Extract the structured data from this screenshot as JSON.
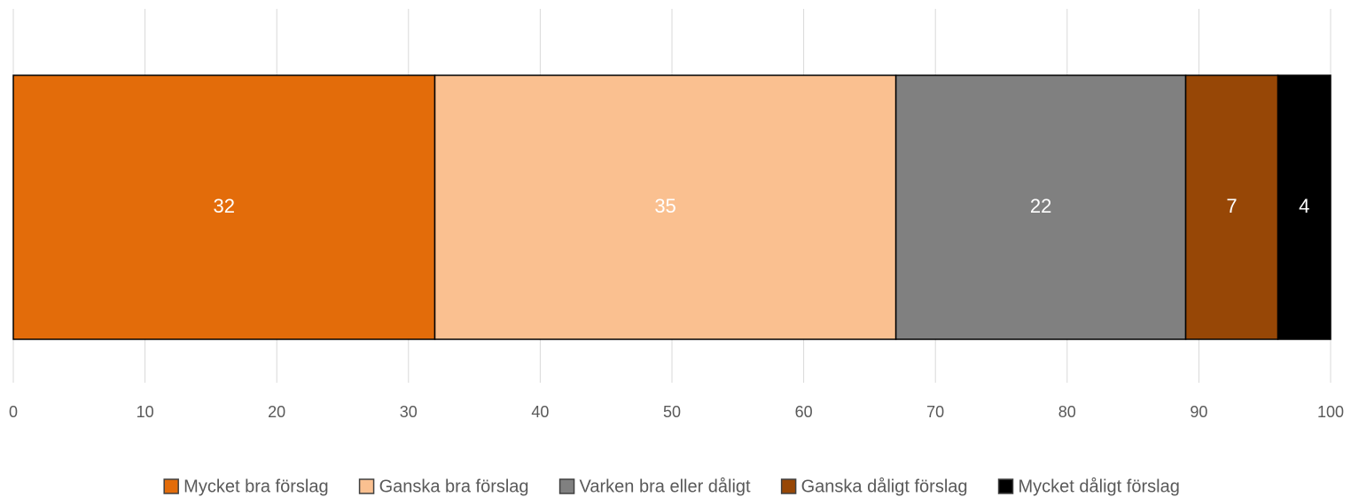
{
  "chart_data": {
    "type": "stacked_bar_horizontal",
    "categories": [
      null
    ],
    "series": [
      {
        "name": "Mycket bra förslag",
        "color": "#e36c0a",
        "values": [
          32
        ]
      },
      {
        "name": "Ganska bra förslag",
        "color": "#fac090",
        "values": [
          35
        ]
      },
      {
        "name": "Varken bra eller dåligt",
        "color": "#808080",
        "values": [
          22
        ]
      },
      {
        "name": "Ganska dåligt förslag",
        "color": "#974706",
        "values": [
          7
        ]
      },
      {
        "name": "Mycket dåligt förslag",
        "color": "#000000",
        "values": [
          4
        ]
      }
    ],
    "xlim": [
      0,
      100
    ],
    "xticks": [
      0,
      10,
      20,
      30,
      40,
      50,
      60,
      70,
      80,
      90,
      100
    ],
    "grid": true,
    "legend": "bottom"
  }
}
